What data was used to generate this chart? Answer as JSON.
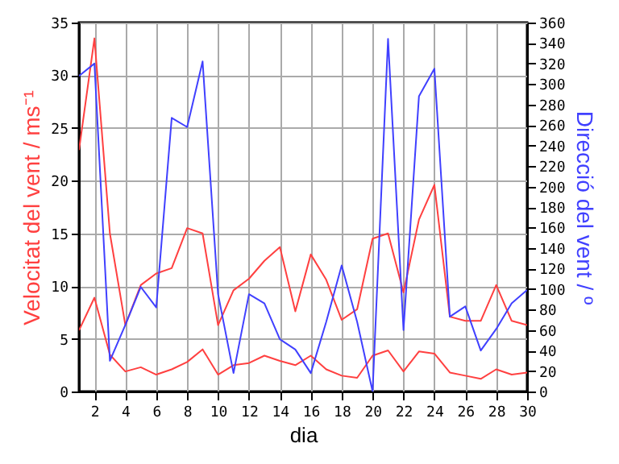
{
  "chart_data": {
    "type": "line",
    "xlabel": "dia",
    "ylabel": "Velocitat del vent / ms⁻¹",
    "y2label": "Direcció del vent / º",
    "x": [
      1,
      2,
      3,
      4,
      5,
      6,
      7,
      8,
      9,
      10,
      11,
      12,
      13,
      14,
      15,
      16,
      17,
      18,
      19,
      20,
      21,
      22,
      23,
      24,
      25,
      26,
      27,
      28,
      29,
      30
    ],
    "series": [
      {
        "color": "#ff4040",
        "values": [
          22.9,
          33.5,
          15,
          6.3,
          10.1,
          11.2,
          11.7,
          15.5,
          15,
          6.3,
          9.6,
          10.7,
          12.4,
          13.7,
          7.6,
          13,
          10.6,
          6.8,
          7.8,
          14.5,
          15,
          9.4,
          16.3,
          19.6,
          7.1,
          6.7,
          6.7,
          10.1,
          6.7,
          6.3
        ]
      },
      {
        "color": "#ff4040",
        "values": [
          5.8,
          8.9,
          3.5,
          1.9,
          2.3,
          1.6,
          2.1,
          2.8,
          4,
          1.6,
          2.5,
          2.7,
          3.4,
          2.9,
          2.5,
          3.4,
          2.1,
          1.5,
          1.3,
          3.4,
          3.9,
          1.9,
          3.8,
          3.6,
          1.8,
          1.5,
          1.2,
          2.1,
          1.6,
          1.8
        ]
      },
      {
        "color": "#4040ff",
        "axis": "y2",
        "values": [
          308,
          320,
          30,
          65,
          102,
          82,
          267,
          258,
          322,
          95,
          18,
          95,
          86,
          51,
          41,
          18,
          68,
          123,
          68,
          0,
          344,
          60,
          288,
          315,
          73,
          83,
          40,
          61,
          86,
          99
        ]
      }
    ],
    "xlim": [
      1,
      30
    ],
    "xticks": [
      2,
      4,
      6,
      8,
      10,
      12,
      14,
      16,
      18,
      20,
      22,
      24,
      26,
      28,
      30
    ],
    "ylim": [
      0,
      35
    ],
    "yticks": [
      0,
      5,
      10,
      15,
      20,
      25,
      30,
      35
    ],
    "y2lim": [
      0,
      360
    ],
    "y2ticks": [
      0,
      20,
      40,
      60,
      80,
      100,
      120,
      140,
      160,
      180,
      200,
      220,
      240,
      260,
      280,
      300,
      320,
      340,
      360
    ],
    "grid": true
  }
}
